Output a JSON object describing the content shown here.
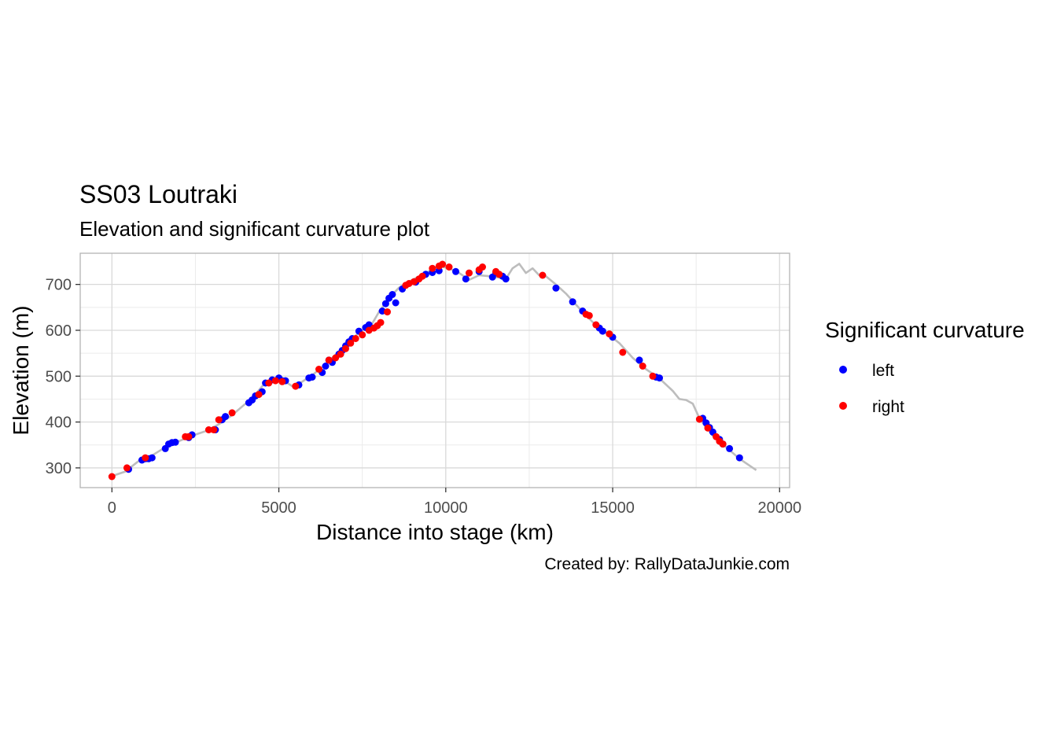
{
  "chart_data": {
    "type": "scatter",
    "title": "SS03 Loutraki",
    "subtitle": "Elevation and significant curvature plot",
    "xlabel": "Distance into stage (km)",
    "ylabel": "Elevation (m)",
    "caption": "Created by: RallyDataJunkie.com",
    "xlim": [
      -950,
      20300
    ],
    "ylim": [
      257,
      768
    ],
    "x_ticks": [
      0,
      5000,
      10000,
      15000,
      20000
    ],
    "y_ticks": [
      300,
      400,
      500,
      600,
      700
    ],
    "x_tick_labels": [
      "0",
      "5000",
      "10000",
      "15000",
      "20000"
    ],
    "y_tick_labels": [
      "300",
      "400",
      "500",
      "600",
      "700"
    ],
    "grid": true,
    "legend": {
      "title": "Significant curvature",
      "position": "right",
      "entries": [
        {
          "label": "left",
          "color": "#0000ff"
        },
        {
          "label": "right",
          "color": "#ff0000"
        }
      ]
    },
    "elevation_line": {
      "color": "#bdbdbd",
      "x": [
        0,
        400,
        800,
        1200,
        1600,
        2000,
        2400,
        2800,
        3200,
        3600,
        4000,
        4300,
        4600,
        4800,
        5000,
        5200,
        5400,
        5600,
        5800,
        6000,
        6300,
        6600,
        7000,
        7400,
        7800,
        8000,
        8300,
        8600,
        9000,
        9400,
        9800,
        10100,
        10400,
        10700,
        11000,
        11300,
        11600,
        11800,
        12000,
        12200,
        12400,
        12600,
        12800,
        13000,
        13300,
        13600,
        14000,
        14400,
        14800,
        15200,
        15600,
        16000,
        16400,
        16800,
        17000,
        17200,
        17400,
        17600,
        17800,
        18000,
        18400,
        18800,
        19300
      ],
      "y": [
        282,
        292,
        315,
        327,
        345,
        358,
        370,
        380,
        395,
        415,
        440,
        460,
        487,
        492,
        492,
        488,
        478,
        483,
        493,
        502,
        520,
        540,
        568,
        595,
        615,
        640,
        670,
        693,
        710,
        725,
        740,
        735,
        725,
        710,
        720,
        718,
        715,
        712,
        735,
        745,
        725,
        735,
        720,
        718,
        700,
        680,
        648,
        618,
        595,
        572,
        540,
        515,
        495,
        468,
        450,
        448,
        440,
        408,
        388,
        370,
        345,
        320,
        295
      ]
    },
    "series": [
      {
        "name": "left",
        "color": "#0000ff",
        "x": [
          500,
          900,
          1000,
          1100,
          1200,
          1600,
          1700,
          1800,
          1900,
          2300,
          2400,
          3100,
          3300,
          3400,
          4100,
          4200,
          4300,
          4500,
          4600,
          4800,
          5000,
          5100,
          5200,
          5600,
          5900,
          6000,
          6300,
          6400,
          6500,
          6600,
          6800,
          6900,
          7000,
          7100,
          7200,
          7400,
          7600,
          7700,
          8100,
          8200,
          8300,
          8400,
          8500,
          8700,
          9100,
          9400,
          9600,
          9800,
          10300,
          10600,
          11000,
          11400,
          11500,
          11700,
          11800,
          13300,
          13800,
          14100,
          14600,
          14700,
          15000,
          15800,
          16300,
          16400,
          17700,
          17800,
          17900,
          18000,
          18200,
          18300,
          18500,
          18800
        ],
        "y": [
          297,
          317,
          320,
          320,
          322,
          342,
          352,
          355,
          356,
          366,
          372,
          383,
          405,
          412,
          442,
          448,
          457,
          466,
          485,
          492,
          496,
          490,
          490,
          481,
          496,
          498,
          508,
          522,
          535,
          530,
          548,
          556,
          566,
          575,
          582,
          598,
          606,
          612,
          642,
          658,
          670,
          678,
          660,
          690,
          705,
          722,
          726,
          730,
          728,
          712,
          728,
          716,
          725,
          718,
          712,
          692,
          662,
          642,
          605,
          598,
          585,
          535,
          498,
          496,
          408,
          398,
          388,
          378,
          362,
          352,
          342,
          322
        ]
      },
      {
        "name": "right",
        "color": "#ff0000",
        "x": [
          0,
          450,
          1000,
          2200,
          2300,
          2900,
          3050,
          3200,
          3600,
          4400,
          4700,
          4900,
          5100,
          5500,
          6200,
          6500,
          6700,
          6850,
          7000,
          7150,
          7300,
          7500,
          7700,
          7850,
          7950,
          8050,
          8250,
          8800,
          8900,
          9050,
          9200,
          9300,
          9600,
          9800,
          9900,
          10100,
          10700,
          11000,
          11100,
          11500,
          11600,
          12900,
          14200,
          14300,
          14500,
          14900,
          15300,
          15900,
          16200,
          17600,
          17850,
          18100,
          18200,
          18300
        ],
        "y": [
          281,
          300,
          322,
          368,
          368,
          383,
          383,
          405,
          420,
          460,
          485,
          490,
          488,
          478,
          515,
          535,
          540,
          548,
          560,
          572,
          582,
          590,
          600,
          605,
          610,
          617,
          640,
          698,
          702,
          706,
          712,
          718,
          735,
          740,
          744,
          738,
          725,
          732,
          738,
          728,
          722,
          720,
          635,
          632,
          612,
          592,
          552,
          522,
          500,
          406,
          387,
          368,
          358,
          352
        ]
      }
    ]
  }
}
